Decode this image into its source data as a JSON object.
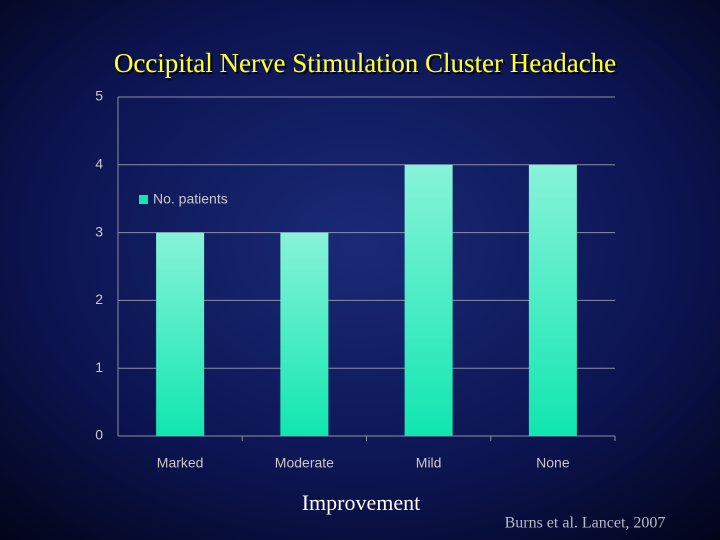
{
  "chart_data": {
    "type": "bar",
    "title": "Occipital Nerve Stimulation Cluster Headache",
    "categories": [
      "Marked",
      "Moderate",
      "Mild",
      "None"
    ],
    "series": [
      {
        "name": "No. patients",
        "color": "#10e6b0",
        "values": [
          3,
          3,
          4,
          4
        ]
      }
    ],
    "xlabel": "Improvement",
    "source": "Burns et al. Lancet, 2007",
    "ylim": [
      0,
      5
    ],
    "yticks": [
      0,
      1,
      2,
      3,
      4,
      5
    ],
    "grid": true,
    "legend": "left"
  }
}
